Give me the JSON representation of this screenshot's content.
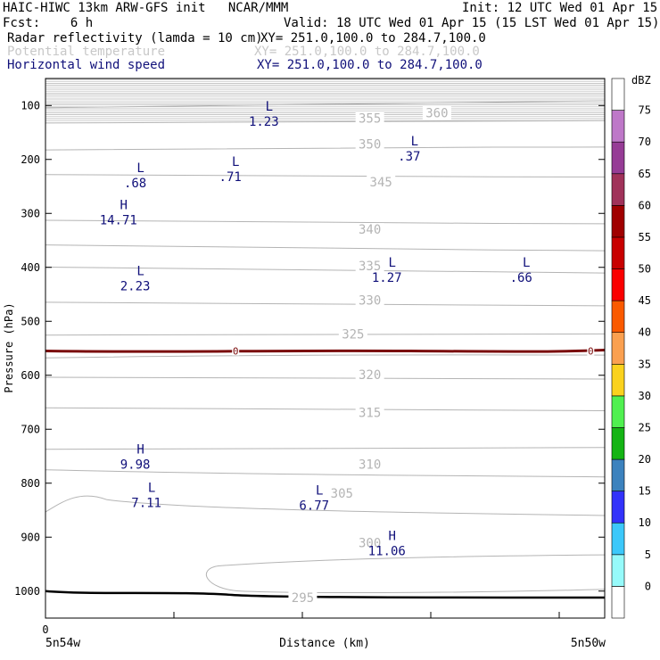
{
  "header": {
    "title_left": "HAIC-HIWC 13km ARW-GFS init   NCAR/MMM",
    "init": "Init: 12 UTC Wed 01 Apr 15",
    "fcst": "Fcst:    6 h",
    "valid": "Valid: 18 UTC Wed 01 Apr 15 (15 LST Wed 01 Apr 15)",
    "fields": [
      {
        "name": "Radar reflectivity (lamda = 10 cm)",
        "xy": "XY= 251.0,100.0 to 284.7,100.0"
      },
      {
        "name": "Potential temperature",
        "xy": "XY= 251.0,100.0 to 284.7,100.0"
      },
      {
        "name": "Horizontal wind speed",
        "xy": "XY= 251.0,100.0 to 284.7,100.0"
      }
    ]
  },
  "colors": {
    "navy": "#10107a",
    "theta": "#b4b4b4",
    "zero_line": "#7a0a0a",
    "terrain": "#000000"
  },
  "chart_data": {
    "type": "contour",
    "xlabel": "Distance (km)",
    "ylabel": "Pressure (hPa)",
    "x_tick_label": "0",
    "x_left_label": "5n54w",
    "x_right_label": "5n50w",
    "ylim": [
      50,
      1050
    ],
    "y_ticks": [
      100,
      200,
      300,
      400,
      500,
      600,
      700,
      800,
      900,
      1000
    ],
    "theta_labels": [
      {
        "value": "360",
        "x": 0.7,
        "p": 117
      },
      {
        "value": "355",
        "x": 0.58,
        "p": 127
      },
      {
        "value": "350",
        "x": 0.58,
        "p": 175
      },
      {
        "value": "345",
        "x": 0.6,
        "p": 245
      },
      {
        "value": "340",
        "x": 0.58,
        "p": 333
      },
      {
        "value": "335",
        "x": 0.58,
        "p": 400
      },
      {
        "value": "330",
        "x": 0.58,
        "p": 464
      },
      {
        "value": "325",
        "x": 0.55,
        "p": 527
      },
      {
        "value": "320",
        "x": 0.58,
        "p": 602
      },
      {
        "value": "315",
        "x": 0.58,
        "p": 672
      },
      {
        "value": "310",
        "x": 0.58,
        "p": 768
      },
      {
        "value": "305",
        "x": 0.53,
        "p": 822
      },
      {
        "value": "300",
        "x": 0.58,
        "p": 914
      },
      {
        "value": "295",
        "x": 0.46,
        "p": 1015
      }
    ],
    "wind_extrema": [
      {
        "type": "L",
        "value": "1.23",
        "x": 0.4,
        "p": 123
      },
      {
        "type": "L",
        "value": ".37",
        "x": 0.66,
        "p": 187
      },
      {
        "type": "L",
        "value": ".68",
        "x": 0.17,
        "p": 237
      },
      {
        "type": "L",
        "value": ".71",
        "x": 0.34,
        "p": 225
      },
      {
        "type": "H",
        "value": "14.71",
        "x": 0.14,
        "p": 305
      },
      {
        "type": "L",
        "value": "2.23",
        "x": 0.17,
        "p": 428
      },
      {
        "type": "L",
        "value": "1.27",
        "x": 0.62,
        "p": 412
      },
      {
        "type": "L",
        "value": ".66",
        "x": 0.86,
        "p": 412
      },
      {
        "type": "H",
        "value": "9.98",
        "x": 0.17,
        "p": 758
      },
      {
        "type": "L",
        "value": "7.11",
        "x": 0.19,
        "p": 829
      },
      {
        "type": "L",
        "value": "6.77",
        "x": 0.49,
        "p": 834
      },
      {
        "type": "H",
        "value": "11.06",
        "x": 0.62,
        "p": 919
      }
    ],
    "zero_line_label": "0",
    "zero_line_p": 555,
    "colorbar": {
      "unit": "dBZ",
      "levels": [
        -5,
        0,
        5,
        10,
        15,
        20,
        25,
        30,
        35,
        40,
        45,
        50,
        55,
        60,
        65,
        70,
        75,
        80
      ],
      "labels": [
        "0",
        "5",
        "10",
        "15",
        "20",
        "25",
        "30",
        "35",
        "40",
        "45",
        "50",
        "55",
        "60",
        "65",
        "70",
        "75"
      ],
      "colors": [
        "#ffffff",
        "#96fafa",
        "#3cc8fa",
        "#3232fa",
        "#3c82be",
        "#14b414",
        "#50f050",
        "#fad21e",
        "#faa050",
        "#fa5a00",
        "#fa0000",
        "#c80000",
        "#a00000",
        "#a0325a",
        "#963c96",
        "#be78c8",
        "#ffffff"
      ]
    }
  }
}
